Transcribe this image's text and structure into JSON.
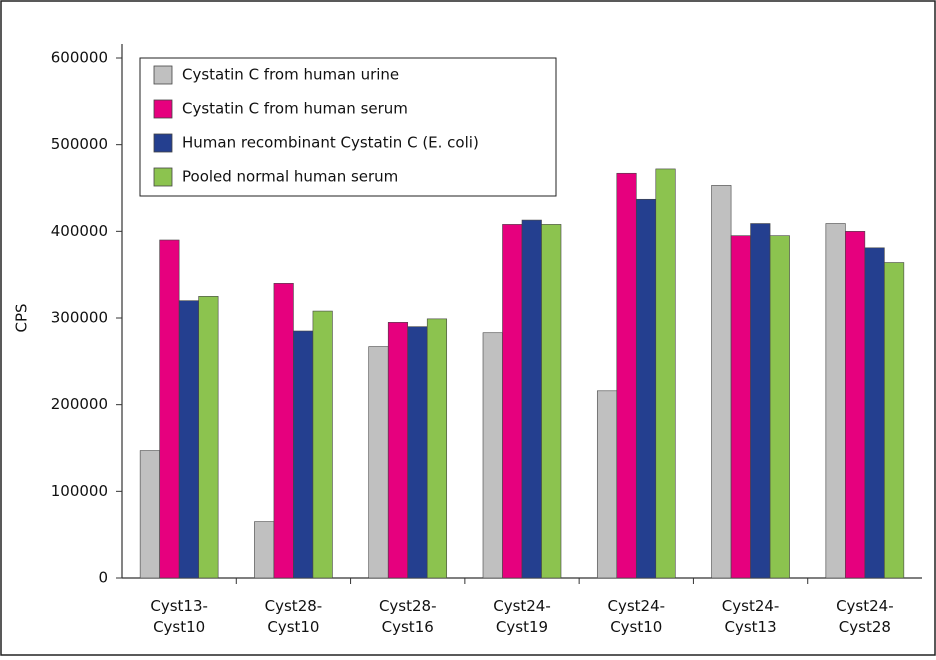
{
  "chart_data": {
    "type": "bar",
    "y_label": "CPS",
    "categories": [
      "Cyst13-Cyst10",
      "Cyst28-Cyst10",
      "Cyst28-Cyst16",
      "Cyst24-Cyst19",
      "Cyst24-Cyst10",
      "Cyst24-Cyst13",
      "Cyst24-Cyst28"
    ],
    "series": [
      {
        "name": "Cystatin C from human urine",
        "color": "#c0c0c0",
        "values": [
          147000,
          65000,
          267000,
          283000,
          216000,
          453000,
          409000
        ]
      },
      {
        "name": "Cystatin C from human serum",
        "color": "#e6007e",
        "values": [
          390000,
          340000,
          295000,
          408000,
          467000,
          395000,
          400000
        ]
      },
      {
        "name": "Human recombinant Cystatin C (E. coli)",
        "color": "#243f8f",
        "values": [
          320000,
          285000,
          290000,
          413000,
          437000,
          409000,
          381000
        ]
      },
      {
        "name": "Pooled normal human serum",
        "color": "#8cc34f",
        "values": [
          325000,
          308000,
          299000,
          408000,
          472000,
          395000,
          364000
        ]
      }
    ],
    "ylim": [
      0,
      600000
    ],
    "yticks": [
      0,
      100000,
      200000,
      300000,
      400000,
      500000,
      600000
    ],
    "legend": "upper left"
  }
}
